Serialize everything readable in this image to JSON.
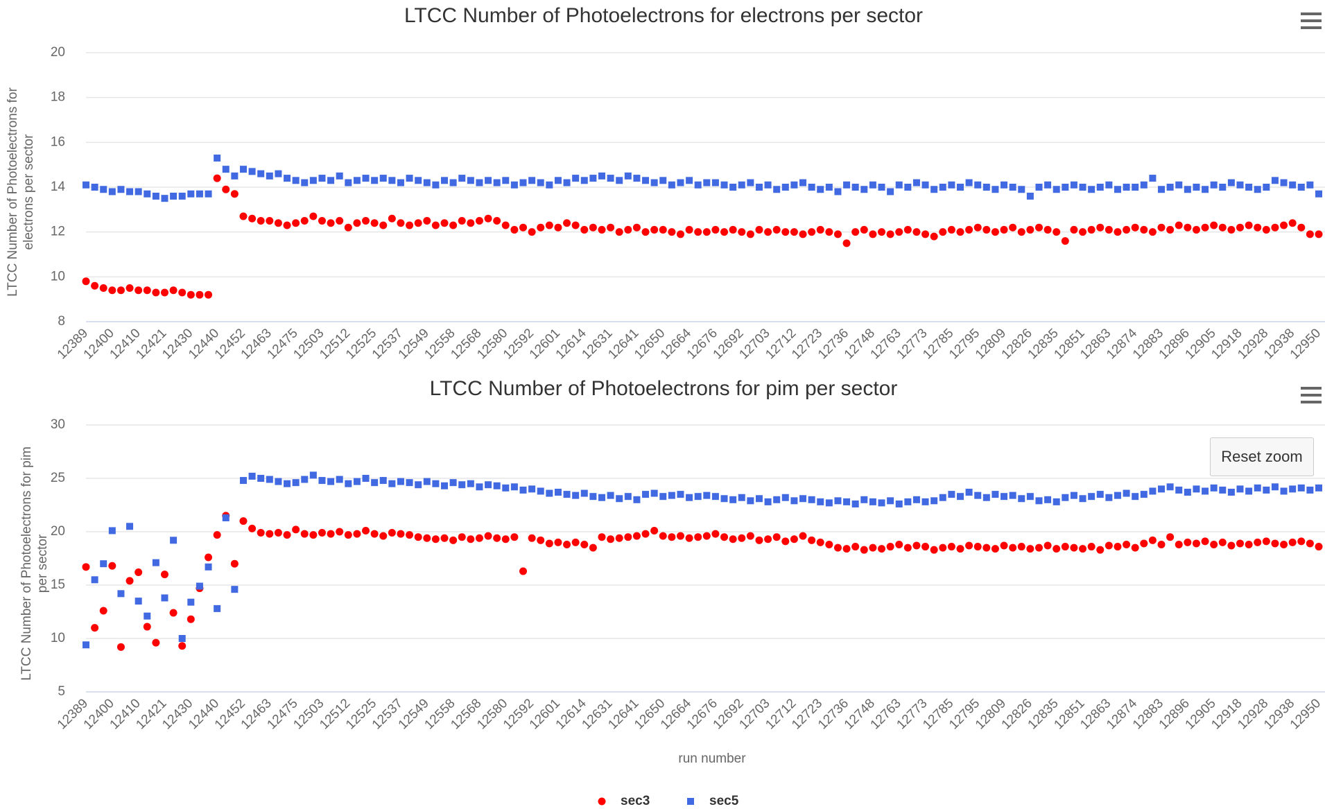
{
  "chart_data": [
    {
      "type": "scatter",
      "title": "LTCC Number of Photoelectrons for electrons per sector",
      "y_label": "LTCC Number of Photoelectrons for electrons per sector",
      "categories": [
        "12389",
        null,
        null,
        "12400",
        null,
        null,
        "12410",
        null,
        null,
        "12421",
        null,
        null,
        "12430",
        null,
        null,
        "12440",
        null,
        null,
        "12452",
        null,
        null,
        "12463",
        null,
        null,
        "12475",
        null,
        null,
        "12503",
        null,
        null,
        "12512",
        null,
        null,
        "12525",
        null,
        null,
        "12537",
        null,
        null,
        "12549",
        null,
        null,
        "12558",
        null,
        null,
        "12568",
        null,
        null,
        "12580",
        null,
        null,
        "12592",
        null,
        null,
        "12601",
        null,
        null,
        "12614",
        null,
        null,
        "12631",
        null,
        null,
        "12641",
        null,
        null,
        "12650",
        null,
        null,
        "12664",
        null,
        null,
        "12676",
        null,
        null,
        "12692",
        null,
        null,
        "12703",
        null,
        null,
        "12712",
        null,
        null,
        "12723",
        null,
        null,
        "12736",
        null,
        null,
        "12748",
        null,
        null,
        "12763",
        null,
        null,
        "12773",
        null,
        null,
        "12785",
        null,
        null,
        "12795",
        null,
        null,
        "12809",
        null,
        null,
        "12826",
        null,
        null,
        "12835",
        null,
        null,
        "12851",
        null,
        null,
        "12863",
        null,
        null,
        "12874",
        null,
        null,
        "12883",
        null,
        null,
        "12896",
        null,
        null,
        "12905",
        null,
        null,
        "12918",
        null,
        null,
        "12928",
        null,
        null,
        "12938",
        null,
        null,
        "12950"
      ],
      "ylim": [
        8,
        20
      ],
      "yticks": [
        8,
        10,
        12,
        14,
        16,
        18,
        20
      ],
      "grid": true,
      "series": [
        {
          "name": "sec3",
          "color": "#ff0000",
          "marker": "circle",
          "values": [
            9.8,
            9.6,
            9.5,
            9.4,
            9.4,
            9.5,
            9.4,
            9.4,
            9.3,
            9.3,
            9.4,
            9.3,
            9.2,
            9.2,
            9.2,
            14.4,
            13.9,
            13.7,
            12.7,
            12.6,
            12.5,
            12.5,
            12.4,
            12.3,
            12.4,
            12.5,
            12.7,
            12.5,
            12.4,
            12.5,
            12.2,
            12.4,
            12.5,
            12.4,
            12.3,
            12.6,
            12.4,
            12.3,
            12.4,
            12.5,
            12.3,
            12.4,
            12.3,
            12.5,
            12.4,
            12.5,
            12.6,
            12.5,
            12.3,
            12.1,
            12.2,
            12.0,
            12.2,
            12.3,
            12.2,
            12.4,
            12.3,
            12.1,
            12.2,
            12.1,
            12.2,
            12.0,
            12.1,
            12.2,
            12.0,
            12.1,
            12.1,
            12.0,
            11.9,
            12.1,
            12.0,
            12.0,
            12.1,
            12.0,
            12.1,
            12.0,
            11.9,
            12.1,
            12.0,
            12.1,
            12.0,
            12.0,
            11.9,
            12.0,
            12.1,
            12.0,
            11.9,
            11.5,
            12.0,
            12.1,
            11.9,
            12.0,
            11.9,
            12.0,
            12.1,
            12.0,
            11.9,
            11.8,
            12.0,
            12.1,
            12.0,
            12.1,
            12.2,
            12.1,
            12.0,
            12.1,
            12.2,
            12.0,
            12.1,
            12.2,
            12.1,
            12.0,
            11.6,
            12.1,
            12.0,
            12.1,
            12.2,
            12.1,
            12.0,
            12.1,
            12.2,
            12.1,
            12.0,
            12.2,
            12.1,
            12.3,
            12.2,
            12.1,
            12.2,
            12.3,
            12.2,
            12.1,
            12.2,
            12.3,
            12.2,
            12.1,
            12.2,
            12.3,
            12.4,
            12.2,
            11.9,
            11.9
          ]
        },
        {
          "name": "sec5",
          "color": "#4169e1",
          "marker": "square",
          "values": [
            14.1,
            14.0,
            13.9,
            13.8,
            13.9,
            13.8,
            13.8,
            13.7,
            13.6,
            13.5,
            13.6,
            13.6,
            13.7,
            13.7,
            13.7,
            15.3,
            14.8,
            14.5,
            14.8,
            14.7,
            14.6,
            14.5,
            14.6,
            14.4,
            14.3,
            14.2,
            14.3,
            14.4,
            14.3,
            14.5,
            14.2,
            14.3,
            14.4,
            14.3,
            14.4,
            14.3,
            14.2,
            14.4,
            14.3,
            14.2,
            14.1,
            14.3,
            14.2,
            14.4,
            14.3,
            14.2,
            14.3,
            14.2,
            14.3,
            14.1,
            14.2,
            14.3,
            14.2,
            14.1,
            14.3,
            14.2,
            14.4,
            14.3,
            14.4,
            14.5,
            14.4,
            14.3,
            14.5,
            14.4,
            14.3,
            14.2,
            14.3,
            14.1,
            14.2,
            14.3,
            14.1,
            14.2,
            14.2,
            14.1,
            14.0,
            14.1,
            14.2,
            14.0,
            14.1,
            13.9,
            14.0,
            14.1,
            14.2,
            14.0,
            13.9,
            14.0,
            13.8,
            14.1,
            14.0,
            13.9,
            14.1,
            14.0,
            13.8,
            14.1,
            14.0,
            14.2,
            14.1,
            13.9,
            14.0,
            14.1,
            14.0,
            14.2,
            14.1,
            14.0,
            13.9,
            14.1,
            14.0,
            13.9,
            13.6,
            14.0,
            14.1,
            13.9,
            14.0,
            14.1,
            14.0,
            13.9,
            14.0,
            14.1,
            13.9,
            14.0,
            14.0,
            14.1,
            14.4,
            13.9,
            14.0,
            14.1,
            13.9,
            14.0,
            13.9,
            14.1,
            14.0,
            14.2,
            14.1,
            14.0,
            13.9,
            14.0,
            14.3,
            14.2,
            14.1,
            14.0,
            14.1,
            13.7
          ]
        }
      ]
    },
    {
      "type": "scatter",
      "title": "LTCC Number of Photoelectrons for pim per sector",
      "y_label": "LTCC Number of Photoelectrons for pim per sector",
      "x_label": "run number",
      "button": "Reset zoom",
      "categories": [
        "12389",
        null,
        null,
        "12400",
        null,
        null,
        "12410",
        null,
        null,
        "12421",
        null,
        null,
        "12430",
        null,
        null,
        "12440",
        null,
        null,
        "12452",
        null,
        null,
        "12463",
        null,
        null,
        "12475",
        null,
        null,
        "12503",
        null,
        null,
        "12512",
        null,
        null,
        "12525",
        null,
        null,
        "12537",
        null,
        null,
        "12549",
        null,
        null,
        "12558",
        null,
        null,
        "12568",
        null,
        null,
        "12580",
        null,
        null,
        "12592",
        null,
        null,
        "12601",
        null,
        null,
        "12614",
        null,
        null,
        "12631",
        null,
        null,
        "12641",
        null,
        null,
        "12650",
        null,
        null,
        "12664",
        null,
        null,
        "12676",
        null,
        null,
        "12692",
        null,
        null,
        "12703",
        null,
        null,
        "12712",
        null,
        null,
        "12723",
        null,
        null,
        "12736",
        null,
        null,
        "12748",
        null,
        null,
        "12763",
        null,
        null,
        "12773",
        null,
        null,
        "12785",
        null,
        null,
        "12795",
        null,
        null,
        "12809",
        null,
        null,
        "12826",
        null,
        null,
        "12835",
        null,
        null,
        "12851",
        null,
        null,
        "12863",
        null,
        null,
        "12874",
        null,
        null,
        "12883",
        null,
        null,
        "12896",
        null,
        null,
        "12905",
        null,
        null,
        "12918",
        null,
        null,
        "12928",
        null,
        null,
        "12938",
        null,
        null,
        "12950"
      ],
      "ylim": [
        5,
        30
      ],
      "yticks": [
        5,
        10,
        15,
        20,
        25,
        30
      ],
      "grid": true,
      "legend": "bottom",
      "series": [
        {
          "name": "sec3",
          "color": "#ff0000",
          "marker": "circle",
          "values": [
            16.7,
            11.0,
            12.6,
            16.8,
            9.2,
            15.4,
            16.2,
            11.1,
            9.6,
            16.0,
            12.4,
            9.3,
            11.8,
            14.7,
            17.6,
            19.7,
            21.5,
            17.0,
            21.0,
            20.3,
            19.9,
            19.8,
            19.9,
            19.7,
            20.2,
            19.8,
            19.7,
            19.9,
            19.8,
            20.0,
            19.7,
            19.8,
            20.1,
            19.8,
            19.6,
            19.9,
            19.8,
            19.7,
            19.5,
            19.4,
            19.3,
            19.4,
            19.2,
            19.5,
            19.3,
            19.4,
            19.6,
            19.4,
            19.3,
            19.5,
            16.3,
            19.4,
            19.2,
            18.9,
            19.0,
            18.8,
            19.0,
            18.8,
            18.5,
            19.5,
            19.3,
            19.4,
            19.5,
            19.6,
            19.8,
            20.1,
            19.6,
            19.5,
            19.6,
            19.4,
            19.5,
            19.6,
            19.8,
            19.5,
            19.3,
            19.4,
            19.6,
            19.2,
            19.3,
            19.5,
            19.1,
            19.3,
            19.6,
            19.2,
            19.0,
            18.8,
            18.5,
            18.4,
            18.6,
            18.3,
            18.5,
            18.4,
            18.6,
            18.8,
            18.5,
            18.7,
            18.6,
            18.3,
            18.5,
            18.6,
            18.4,
            18.7,
            18.6,
            18.5,
            18.4,
            18.7,
            18.5,
            18.6,
            18.4,
            18.5,
            18.7,
            18.4,
            18.6,
            18.5,
            18.4,
            18.6,
            18.3,
            18.7,
            18.6,
            18.8,
            18.5,
            18.9,
            19.2,
            18.8,
            19.5,
            18.8,
            19.0,
            18.9,
            19.1,
            18.8,
            19.0,
            18.7,
            18.9,
            18.8,
            19.0,
            19.1,
            18.9,
            18.8,
            19.0,
            19.1,
            18.9,
            18.6
          ]
        },
        {
          "name": "sec5",
          "color": "#4169e1",
          "marker": "square",
          "values": [
            9.4,
            15.5,
            17.0,
            20.1,
            14.2,
            20.5,
            13.5,
            12.1,
            17.1,
            13.8,
            19.2,
            10.0,
            13.4,
            14.9,
            16.7,
            12.8,
            21.3,
            14.6,
            24.8,
            25.2,
            25.0,
            24.9,
            24.7,
            24.5,
            24.6,
            24.9,
            25.3,
            24.8,
            24.7,
            24.9,
            24.5,
            24.7,
            25.0,
            24.6,
            24.8,
            24.5,
            24.7,
            24.6,
            24.4,
            24.7,
            24.5,
            24.3,
            24.6,
            24.4,
            24.5,
            24.2,
            24.4,
            24.3,
            24.1,
            24.2,
            23.9,
            24.0,
            23.8,
            23.6,
            23.7,
            23.5,
            23.4,
            23.6,
            23.3,
            23.2,
            23.4,
            23.1,
            23.3,
            23.0,
            23.5,
            23.6,
            23.3,
            23.4,
            23.5,
            23.2,
            23.3,
            23.4,
            23.3,
            23.1,
            23.0,
            23.2,
            22.9,
            23.1,
            22.8,
            23.0,
            23.2,
            22.9,
            23.1,
            23.0,
            22.8,
            22.7,
            22.9,
            22.8,
            22.6,
            23.0,
            22.8,
            22.7,
            22.9,
            22.6,
            22.8,
            23.0,
            22.8,
            22.9,
            23.2,
            23.5,
            23.3,
            23.7,
            23.4,
            23.2,
            23.5,
            23.3,
            23.4,
            23.1,
            23.3,
            22.9,
            23.0,
            22.8,
            23.2,
            23.4,
            23.1,
            23.3,
            23.5,
            23.2,
            23.4,
            23.6,
            23.3,
            23.5,
            23.8,
            24.0,
            24.2,
            23.9,
            23.7,
            24.0,
            23.8,
            24.1,
            23.9,
            23.7,
            24.0,
            23.8,
            24.1,
            23.9,
            24.2,
            23.8,
            24.0,
            24.1,
            23.9,
            24.1
          ]
        }
      ]
    }
  ]
}
